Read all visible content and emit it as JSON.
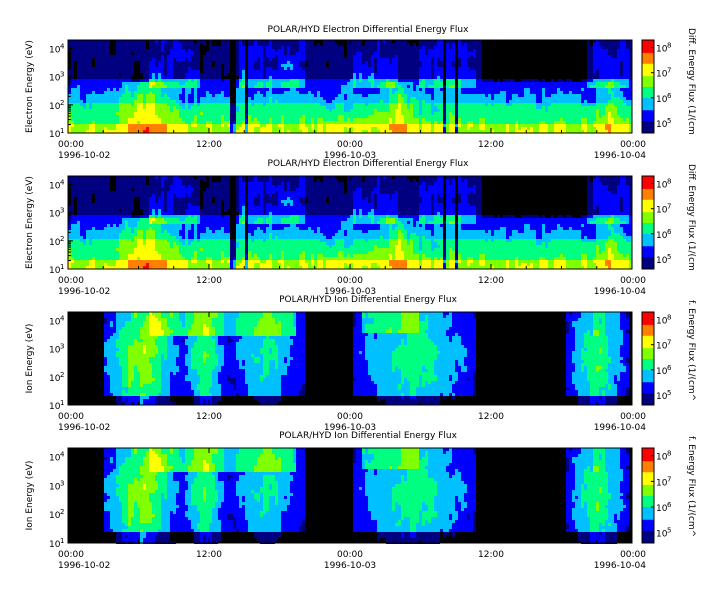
{
  "chart_data": [
    {
      "type": "heatmap",
      "title": "POLAR/HYD  Electron Differential Energy Flux",
      "ylabel": "Electron Energy (eV)",
      "colorbar_label": "Diff. Energy Flux (1/(cm",
      "y_scale": "log",
      "ylim": [
        10,
        20000
      ],
      "y_ticks": [
        {
          "b": "10",
          "e": "1"
        },
        {
          "b": "10",
          "e": "2"
        },
        {
          "b": "10",
          "e": "3"
        },
        {
          "b": "10",
          "e": "4"
        }
      ],
      "colorbar_ticks": [
        {
          "b": "10",
          "e": "5"
        },
        {
          "b": "10",
          "e": "6"
        },
        {
          "b": "10",
          "e": "7"
        },
        {
          "b": "10",
          "e": "8"
        }
      ],
      "x_ticks": [
        {
          "time": "00:00",
          "date": "1996-10-02"
        },
        {
          "time": "12:00",
          "date": ""
        },
        {
          "time": "00:00",
          "date": "1996-10-03"
        },
        {
          "time": "12:00",
          "date": ""
        },
        {
          "time": "00:00",
          "date": "1996-10-04"
        }
      ],
      "xlim": [
        "1996-10-02 00:00",
        "1996-10-04 00:00"
      ],
      "species": "electron"
    },
    {
      "type": "heatmap",
      "title": "POLAR/HYD  Electron Differential Energy Flux",
      "ylabel": "Electron Energy (eV)",
      "colorbar_label": "Diff. Energy Flux (1/(cm",
      "y_scale": "log",
      "ylim": [
        10,
        20000
      ],
      "y_ticks": [
        {
          "b": "10",
          "e": "1"
        },
        {
          "b": "10",
          "e": "2"
        },
        {
          "b": "10",
          "e": "3"
        },
        {
          "b": "10",
          "e": "4"
        }
      ],
      "colorbar_ticks": [
        {
          "b": "10",
          "e": "5"
        },
        {
          "b": "10",
          "e": "6"
        },
        {
          "b": "10",
          "e": "7"
        },
        {
          "b": "10",
          "e": "8"
        }
      ],
      "x_ticks": [
        {
          "time": "00:00",
          "date": "1996-10-02"
        },
        {
          "time": "12:00",
          "date": ""
        },
        {
          "time": "00:00",
          "date": "1996-10-03"
        },
        {
          "time": "12:00",
          "date": ""
        },
        {
          "time": "00:00",
          "date": "1996-10-04"
        }
      ],
      "xlim": [
        "1996-10-02 00:00",
        "1996-10-04 00:00"
      ],
      "species": "electron"
    },
    {
      "type": "heatmap",
      "title": "POLAR/HYD  Ion Differential Energy Flux",
      "ylabel": "Ion Energy (eV)",
      "colorbar_label": "f. Energy Flux (1/(cm^",
      "y_scale": "log",
      "ylim": [
        10,
        20000
      ],
      "y_ticks": [
        {
          "b": "10",
          "e": "1"
        },
        {
          "b": "10",
          "e": "2"
        },
        {
          "b": "10",
          "e": "3"
        },
        {
          "b": "10",
          "e": "4"
        }
      ],
      "colorbar_ticks": [
        {
          "b": "10",
          "e": "5"
        },
        {
          "b": "10",
          "e": "6"
        },
        {
          "b": "10",
          "e": "7"
        },
        {
          "b": "10",
          "e": "8"
        }
      ],
      "x_ticks": [
        {
          "time": "00:00",
          "date": "1996-10-02"
        },
        {
          "time": "12:00",
          "date": ""
        },
        {
          "time": "00:00",
          "date": "1996-10-03"
        },
        {
          "time": "12:00",
          "date": ""
        },
        {
          "time": "00:00",
          "date": "1996-10-04"
        }
      ],
      "xlim": [
        "1996-10-02 00:00",
        "1996-10-04 00:00"
      ],
      "species": "ion"
    },
    {
      "type": "heatmap",
      "title": "POLAR/HYD  Ion Differential Energy Flux",
      "ylabel": "Ion Energy (eV)",
      "colorbar_label": "f. Energy Flux (1/(cm^",
      "y_scale": "log",
      "ylim": [
        10,
        20000
      ],
      "y_ticks": [
        {
          "b": "10",
          "e": "1"
        },
        {
          "b": "10",
          "e": "2"
        },
        {
          "b": "10",
          "e": "3"
        },
        {
          "b": "10",
          "e": "4"
        }
      ],
      "colorbar_ticks": [
        {
          "b": "10",
          "e": "5"
        },
        {
          "b": "10",
          "e": "6"
        },
        {
          "b": "10",
          "e": "7"
        },
        {
          "b": "10",
          "e": "8"
        }
      ],
      "x_ticks": [
        {
          "time": "00:00",
          "date": "1996-10-02"
        },
        {
          "time": "12:00",
          "date": ""
        },
        {
          "time": "00:00",
          "date": "1996-10-03"
        },
        {
          "time": "12:00",
          "date": ""
        },
        {
          "time": "00:00",
          "date": "1996-10-04"
        }
      ],
      "xlim": [
        "1996-10-02 00:00",
        "1996-10-04 00:00"
      ],
      "species": "ion"
    }
  ],
  "colormap": [
    "#000080",
    "#0000ff",
    "#00c0ff",
    "#00ff80",
    "#80ff00",
    "#ffff00",
    "#ff8000",
    "#ff0000"
  ],
  "background_color": "#000000"
}
